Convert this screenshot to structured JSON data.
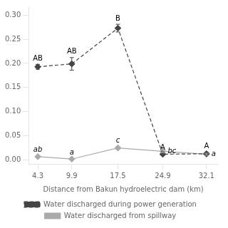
{
  "chart_data": {
    "type": "line",
    "xlabel": "Distance from Bakun hydroelectric dam (km)",
    "x": [
      4.3,
      9.9,
      17.5,
      24.9,
      32.1
    ],
    "series": [
      {
        "name": "Water discharged during power generation",
        "color": "#444444",
        "values": [
          0.193,
          0.199,
          0.273,
          0.012,
          0.013
        ],
        "errors": [
          0.005,
          0.013,
          0.008,
          0.002,
          0.003
        ],
        "annotations": [
          "AB",
          "AB",
          "B",
          "A",
          "A"
        ],
        "line_style": "dashed",
        "marker": "diamond"
      },
      {
        "name": "Water discharged from spillway",
        "color": "#aaaaaa",
        "values": [
          0.007,
          0.002,
          0.025,
          0.018,
          0.012
        ],
        "errors": [
          0.002,
          0.001,
          0.003,
          0.003,
          0.002
        ],
        "annotations": [
          "ab",
          "a",
          "c",
          "bc",
          "a"
        ],
        "line_style": "solid",
        "marker": "diamond"
      }
    ],
    "xlim": [
      2.8,
      34.0
    ],
    "ylim": [
      -0.008,
      0.318
    ],
    "xticks": [
      4.3,
      9.9,
      17.5,
      24.9,
      32.1
    ],
    "yticks": [
      {
        "value": 0.0,
        "label": "0.00"
      },
      0.05,
      {
        "value": 0.1,
        "label": "0.10"
      },
      0.15,
      {
        "value": 0.2,
        "label": "0.20"
      },
      0.25,
      {
        "value": 0.3,
        "label": "0.30"
      }
    ],
    "grid": false,
    "legend": "bottom"
  }
}
